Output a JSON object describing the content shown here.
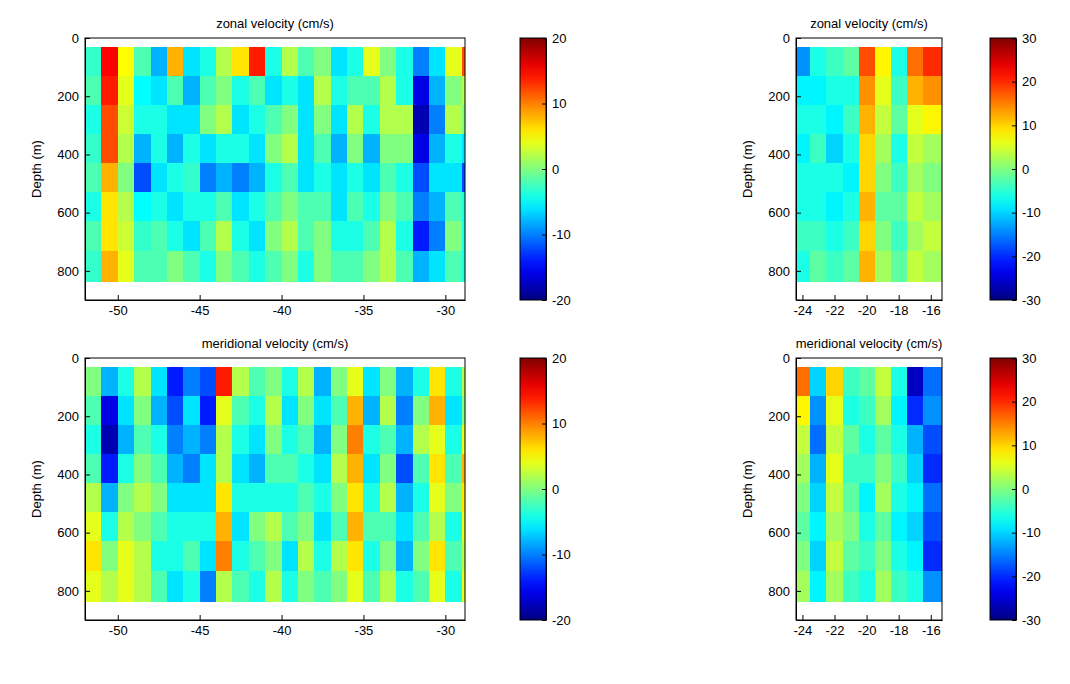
{
  "chart_data": [
    {
      "type": "heatmap",
      "title": "zonal velocity (cm/s)",
      "ylabel": "Depth (m)",
      "xlim": [
        -52,
        -28.8
      ],
      "xticks": [
        -50,
        -45,
        -40,
        -35,
        -30
      ],
      "ylim": [
        0,
        900
      ],
      "yticks": [
        0,
        200,
        400,
        600,
        800
      ],
      "x_edges": [
        -52,
        -51,
        -50,
        -49,
        -48,
        -47,
        -46,
        -45,
        -44,
        -43,
        -42,
        -41,
        -40,
        -39,
        -38,
        -37,
        -36,
        -35,
        -34,
        -33,
        -32,
        -31,
        -30,
        -29,
        -28.8
      ],
      "depth_edges": [
        30,
        130,
        230,
        330,
        430,
        530,
        630,
        730,
        835
      ],
      "cells": [
        [
          -3,
          -2,
          -4,
          -3,
          -2,
          -4,
          -2,
          -3
        ],
        [
          15,
          14,
          12,
          12,
          8,
          6,
          6,
          8
        ],
        [
          5,
          4,
          3,
          2,
          0,
          2,
          3,
          4
        ],
        [
          -2,
          -5,
          -4,
          -8,
          -12,
          -5,
          -3,
          -2
        ],
        [
          -8,
          -6,
          -4,
          -4,
          -6,
          -4,
          -2,
          -2
        ],
        [
          8,
          -2,
          -6,
          -8,
          -4,
          -6,
          -4,
          0
        ],
        [
          -6,
          -8,
          -6,
          -4,
          -3,
          -4,
          -6,
          -2
        ],
        [
          -4,
          -2,
          0,
          -6,
          -10,
          -4,
          -2,
          -4
        ],
        [
          2,
          0,
          2,
          -4,
          -8,
          -2,
          2,
          0
        ],
        [
          6,
          -4,
          -6,
          -4,
          -10,
          -6,
          -4,
          -2
        ],
        [
          14,
          -2,
          -4,
          -6,
          -8,
          -4,
          -6,
          -4
        ],
        [
          -4,
          -6,
          -2,
          0,
          -4,
          -2,
          0,
          -2
        ],
        [
          2,
          -4,
          0,
          2,
          -2,
          0,
          2,
          0
        ],
        [
          -2,
          -6,
          -6,
          -6,
          -6,
          -2,
          -2,
          -4
        ],
        [
          0,
          2,
          0,
          -2,
          -4,
          -2,
          0,
          0
        ],
        [
          -6,
          -4,
          -6,
          -8,
          -6,
          -6,
          -4,
          -2
        ],
        [
          -4,
          -2,
          2,
          0,
          -4,
          -2,
          -4,
          -2
        ],
        [
          4,
          -2,
          -4,
          -8,
          -6,
          -4,
          -2,
          0
        ],
        [
          0,
          2,
          2,
          0,
          -2,
          0,
          2,
          2
        ],
        [
          -4,
          -4,
          2,
          0,
          -4,
          -2,
          -4,
          -2
        ],
        [
          -10,
          -16,
          -18,
          -16,
          -12,
          -10,
          -14,
          -8
        ],
        [
          -6,
          -8,
          -10,
          -8,
          -6,
          -8,
          -10,
          -6
        ],
        [
          4,
          0,
          2,
          -4,
          -6,
          -2,
          0,
          -2
        ],
        [
          12,
          2,
          0,
          -6,
          -12,
          -4,
          -4,
          -4
        ]
      ],
      "colorbar": {
        "range": [
          -20,
          20
        ],
        "ticks": [
          -20,
          -10,
          0,
          10,
          20
        ]
      }
    },
    {
      "type": "heatmap",
      "title": "zonal velocity (cm/s)",
      "ylabel": "Depth (m)",
      "xlim": [
        -24.4,
        -15.3
      ],
      "xticks": [
        -24,
        -22,
        -20,
        -18,
        -16
      ],
      "ylim": [
        0,
        900
      ],
      "yticks": [
        0,
        200,
        400,
        600,
        800
      ],
      "x_edges": [
        -24.4,
        -23.5,
        -22.5,
        -21.5,
        -20.5,
        -19.5,
        -18.5,
        -17.5,
        -16.5,
        -15.3
      ],
      "depth_edges": [
        30,
        130,
        230,
        330,
        430,
        530,
        630,
        730,
        835
      ],
      "cells": [
        [
          -14,
          -8,
          -6,
          -8,
          -6,
          -6,
          -4,
          -6
        ],
        [
          -6,
          -8,
          -6,
          -4,
          -6,
          -6,
          -4,
          -2
        ],
        [
          -4,
          -6,
          -8,
          -10,
          -6,
          -8,
          -6,
          -4
        ],
        [
          -2,
          -6,
          -4,
          -6,
          -8,
          -6,
          -4,
          -2
        ],
        [
          18,
          14,
          12,
          10,
          10,
          12,
          10,
          12
        ],
        [
          8,
          6,
          4,
          2,
          0,
          -2,
          0,
          2
        ],
        [
          -6,
          -4,
          -2,
          -6,
          -4,
          -2,
          -4,
          -2
        ],
        [
          16,
          12,
          6,
          4,
          2,
          4,
          2,
          4
        ],
        [
          20,
          14,
          8,
          2,
          0,
          2,
          4,
          2
        ]
      ],
      "colorbar": {
        "range": [
          -30,
          30
        ],
        "ticks": [
          -30,
          -20,
          -10,
          0,
          10,
          20,
          30
        ]
      }
    },
    {
      "type": "heatmap",
      "title": "meridional velocity (cm/s)",
      "ylabel": "Depth (m)",
      "xlim": [
        -52,
        -28.8
      ],
      "xticks": [
        -50,
        -45,
        -40,
        -35,
        -30
      ],
      "ylim": [
        0,
        900
      ],
      "yticks": [
        0,
        200,
        400,
        600,
        800
      ],
      "x_edges": [
        -52,
        -51,
        -50,
        -49,
        -48,
        -47,
        -46,
        -45,
        -44,
        -43,
        -42,
        -41,
        -40,
        -39,
        -38,
        -37,
        -36,
        -35,
        -34,
        -33,
        -32,
        -31,
        -30,
        -29,
        -28.8
      ],
      "depth_edges": [
        30,
        130,
        230,
        330,
        430,
        530,
        630,
        730,
        835
      ],
      "cells": [
        [
          0,
          -2,
          -4,
          -2,
          2,
          4,
          6,
          4
        ],
        [
          -8,
          -16,
          -18,
          -14,
          -8,
          -4,
          0,
          2
        ],
        [
          -4,
          -6,
          -8,
          -4,
          0,
          2,
          4,
          4
        ],
        [
          2,
          0,
          -2,
          0,
          2,
          0,
          2,
          2
        ],
        [
          -6,
          -8,
          -4,
          -2,
          0,
          -2,
          -4,
          -2
        ],
        [
          -14,
          -12,
          -10,
          -8,
          -6,
          -4,
          -4,
          -6
        ],
        [
          -10,
          -6,
          -8,
          -10,
          -6,
          -4,
          -2,
          -4
        ],
        [
          -12,
          -14,
          -10,
          -6,
          -6,
          -4,
          -6,
          -10
        ],
        [
          14,
          4,
          2,
          2,
          6,
          8,
          10,
          2
        ],
        [
          2,
          -2,
          -4,
          -6,
          -4,
          -6,
          -4,
          -2
        ],
        [
          -2,
          -4,
          -6,
          -8,
          -4,
          0,
          -2,
          -4
        ],
        [
          0,
          2,
          0,
          -2,
          -4,
          2,
          0,
          2
        ],
        [
          -4,
          -6,
          -4,
          -2,
          -4,
          -2,
          -6,
          -4
        ],
        [
          2,
          0,
          -2,
          -4,
          -2,
          0,
          2,
          0
        ],
        [
          -8,
          -6,
          -8,
          -6,
          -4,
          -6,
          -4,
          -2
        ],
        [
          0,
          -2,
          0,
          2,
          0,
          -2,
          2,
          0
        ],
        [
          4,
          8,
          10,
          8,
          6,
          8,
          6,
          4
        ],
        [
          -6,
          -8,
          -4,
          -6,
          -4,
          -2,
          -4,
          -2
        ],
        [
          0,
          2,
          -2,
          0,
          2,
          -2,
          0,
          2
        ],
        [
          -8,
          -10,
          -8,
          -12,
          -8,
          -6,
          -8,
          -4
        ],
        [
          -4,
          0,
          2,
          -2,
          -4,
          -2,
          0,
          -2
        ],
        [
          6,
          8,
          4,
          6,
          4,
          2,
          6,
          4
        ],
        [
          -4,
          -6,
          -4,
          -2,
          0,
          -4,
          -2,
          -4
        ],
        [
          2,
          0,
          4,
          8,
          6,
          4,
          2,
          4
        ]
      ],
      "colorbar": {
        "range": [
          -20,
          20
        ],
        "ticks": [
          -20,
          -10,
          0,
          10,
          20
        ]
      }
    },
    {
      "type": "heatmap",
      "title": "meridional velocity (cm/s)",
      "ylabel": "Depth (m)",
      "xlim": [
        -24.4,
        -15.3
      ],
      "xticks": [
        -24,
        -22,
        -20,
        -18,
        -16
      ],
      "ylim": [
        0,
        900
      ],
      "yticks": [
        0,
        200,
        400,
        600,
        800
      ],
      "x_edges": [
        -24.4,
        -23.5,
        -22.5,
        -21.5,
        -20.5,
        -19.5,
        -18.5,
        -17.5,
        -16.5,
        -15.3
      ],
      "depth_edges": [
        30,
        130,
        230,
        330,
        430,
        530,
        630,
        730,
        835
      ],
      "cells": [
        [
          16,
          8,
          4,
          2,
          0,
          -2,
          0,
          2
        ],
        [
          -10,
          -14,
          -16,
          -12,
          -10,
          -8,
          -10,
          -8
        ],
        [
          10,
          6,
          4,
          6,
          4,
          2,
          4,
          2
        ],
        [
          -4,
          -6,
          -2,
          -4,
          -2,
          0,
          -2,
          -4
        ],
        [
          -2,
          -4,
          -6,
          -4,
          -8,
          -6,
          -4,
          -6
        ],
        [
          4,
          2,
          -2,
          0,
          2,
          -2,
          0,
          2
        ],
        [
          -6,
          -8,
          -6,
          -4,
          -6,
          -8,
          -6,
          -4
        ],
        [
          -26,
          -20,
          -12,
          -10,
          -8,
          -10,
          -8,
          -6
        ],
        [
          -16,
          -14,
          -18,
          -20,
          -16,
          -18,
          -20,
          -14
        ]
      ],
      "colorbar": {
        "range": [
          -30,
          30
        ],
        "ticks": [
          -30,
          -20,
          -10,
          0,
          10,
          20,
          30
        ]
      }
    }
  ]
}
